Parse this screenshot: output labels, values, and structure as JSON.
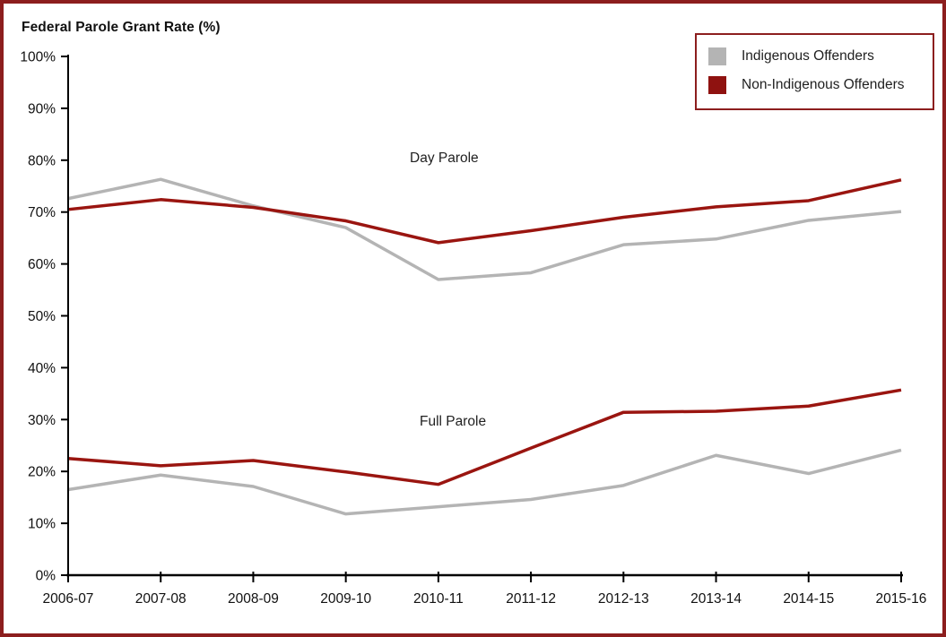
{
  "frame": {
    "border_color": "#8c1e1e"
  },
  "title": "Federal Parole Grant Rate (%)",
  "legend": {
    "items": [
      {
        "label": "Indigenous Offenders",
        "color": "#b4b4b4"
      },
      {
        "label": "Non-Indigenous Offenders",
        "color": "#8f1210"
      }
    ]
  },
  "annotations": [
    {
      "text": "Day Parole"
    },
    {
      "text": "Full Parole"
    }
  ],
  "chart_data": {
    "type": "line",
    "title": "Federal Parole Grant Rate (%)",
    "xlabel": "",
    "ylabel": "Federal Parole Grant Rate (%)",
    "ylim": [
      0,
      100
    ],
    "grid": false,
    "legend_position": "top-right",
    "categories": [
      "2006-07",
      "2007-08",
      "2008-09",
      "2009-10",
      "2010-11",
      "2011-12",
      "2012-13",
      "2013-14",
      "2014-15",
      "2015-16"
    ],
    "y_tick_labels": [
      "0%",
      "10%",
      "20%",
      "30%",
      "40%",
      "50%",
      "60%",
      "70%",
      "80%",
      "90%",
      "100%"
    ],
    "axis_color": "#000000",
    "series": [
      {
        "group": "Day Parole",
        "name": "Indigenous Offenders",
        "color": "#b4b4b4",
        "values": [
          72.6,
          76.3,
          71.2,
          67.0,
          57.0,
          58.3,
          63.7,
          64.8,
          68.4,
          70.1
        ]
      },
      {
        "group": "Day Parole",
        "name": "Non-Indigenous Offenders",
        "color": "#9a1510",
        "values": [
          70.5,
          72.4,
          70.9,
          68.3,
          64.1,
          66.4,
          69.0,
          71.0,
          72.2,
          76.2
        ]
      },
      {
        "group": "Full Parole",
        "name": "Indigenous Offenders",
        "color": "#b4b4b4",
        "values": [
          16.5,
          19.3,
          17.1,
          11.8,
          13.2,
          14.6,
          17.3,
          23.1,
          19.6,
          24.1
        ]
      },
      {
        "group": "Full Parole",
        "name": "Non-Indigenous Offenders",
        "color": "#9a1510",
        "values": [
          22.5,
          21.1,
          22.1,
          19.9,
          17.5,
          24.5,
          31.4,
          31.6,
          32.6,
          35.7
        ]
      }
    ]
  }
}
